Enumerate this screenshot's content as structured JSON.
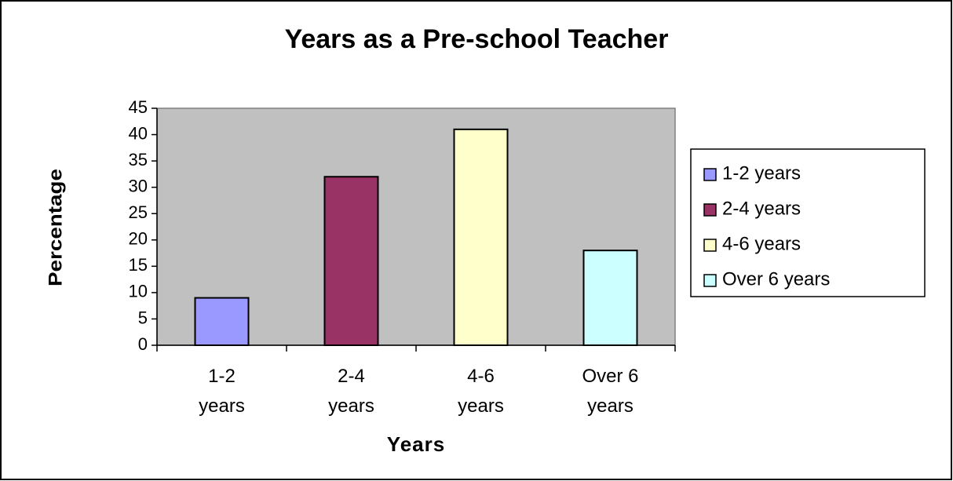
{
  "chart_data": {
    "type": "bar",
    "title": "Years as a Pre-school Teacher",
    "x_label": "Years",
    "y_label": "Percentage",
    "categories": [
      "1-2 years",
      "2-4 years",
      "4-6 years",
      "Over 6 years"
    ],
    "values": [
      9,
      32,
      41,
      18
    ],
    "colors": [
      "#9999ff",
      "#993366",
      "#ffffcc",
      "#ccffff"
    ],
    "ylim": [
      0,
      45
    ],
    "yticks": [
      0,
      5,
      10,
      15,
      20,
      25,
      30,
      35,
      40,
      45
    ],
    "legend": "right"
  }
}
